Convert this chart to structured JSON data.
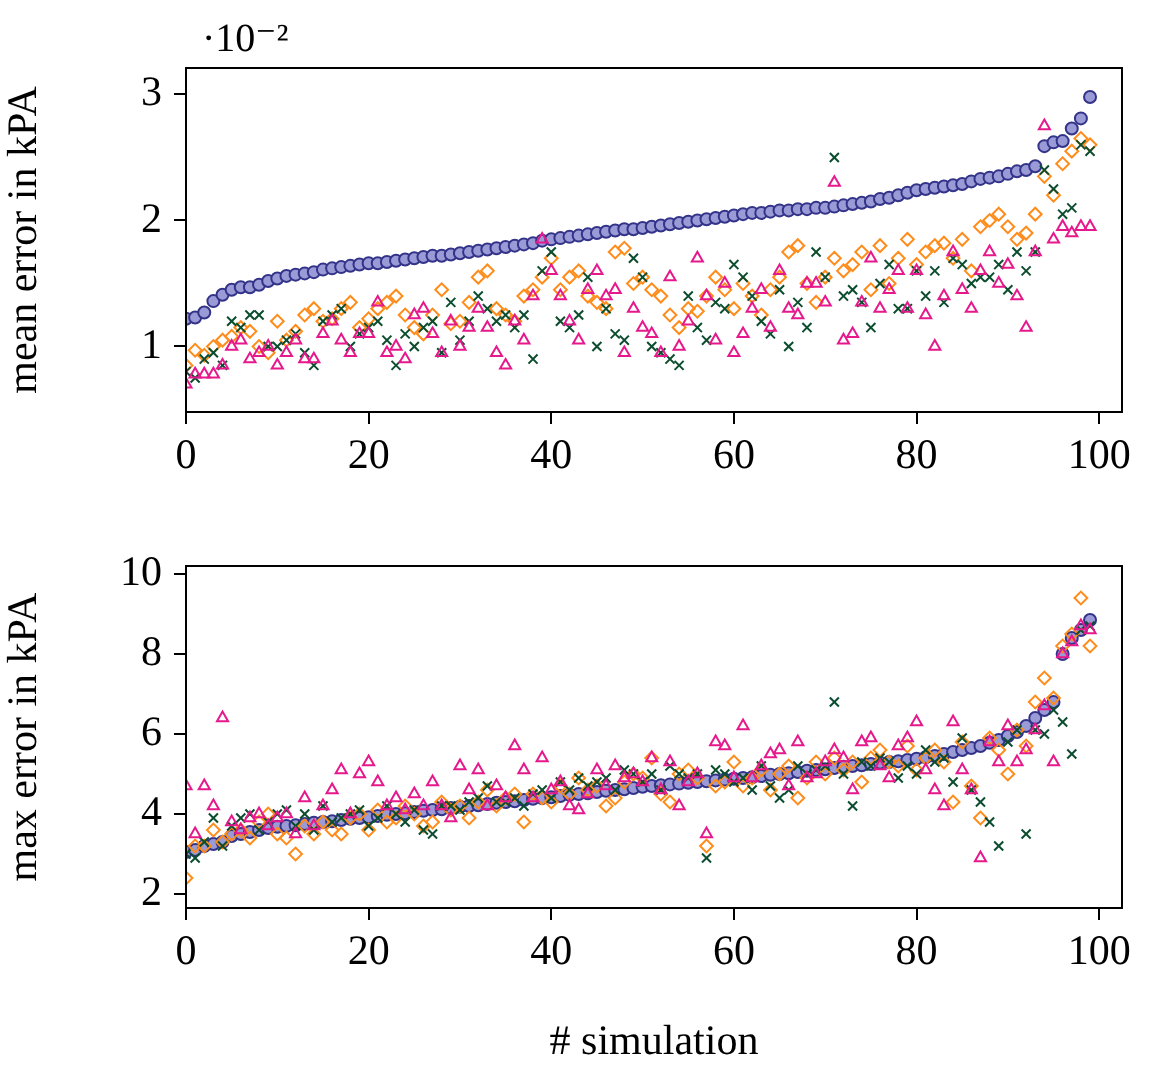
{
  "chart_data": [
    {
      "type": "scatter",
      "ylabel": "mean error in kPA",
      "annotations": [
        "·10⁻²"
      ],
      "xlim": [
        0,
        102.5
      ],
      "xticks": [
        0,
        20,
        40,
        60,
        80,
        100
      ],
      "ylim": [
        0.48,
        3.21
      ],
      "yticks": [
        1,
        2,
        3
      ],
      "grid": false,
      "legend": false,
      "x": [
        0,
        1,
        2,
        3,
        4,
        5,
        6,
        7,
        8,
        9,
        10,
        11,
        12,
        13,
        14,
        15,
        16,
        17,
        18,
        19,
        20,
        21,
        22,
        23,
        24,
        25,
        26,
        27,
        28,
        29,
        30,
        31,
        32,
        33,
        34,
        35,
        36,
        37,
        38,
        39,
        40,
        41,
        42,
        43,
        44,
        45,
        46,
        47,
        48,
        49,
        50,
        51,
        52,
        53,
        54,
        55,
        56,
        57,
        58,
        59,
        60,
        61,
        62,
        63,
        64,
        65,
        66,
        67,
        68,
        69,
        70,
        71,
        72,
        73,
        74,
        75,
        76,
        77,
        78,
        79,
        80,
        81,
        82,
        83,
        84,
        85,
        86,
        87,
        88,
        89,
        90,
        91,
        92,
        93,
        94,
        95,
        96,
        97,
        98,
        99
      ],
      "series": [
        {
          "color": "#e6198c",
          "marker": "triangle",
          "values": [
            0.7,
            0.78,
            0.78,
            0.78,
            0.85,
            1.0,
            1.05,
            0.9,
            0.95,
            1.0,
            0.85,
            0.95,
            1.05,
            0.9,
            0.9,
            1.1,
            1.2,
            1.05,
            0.95,
            1.1,
            1.1,
            1.35,
            0.95,
            1.0,
            0.9,
            1.25,
            1.3,
            1.1,
            0.95,
            1.2,
            1.0,
            1.15,
            1.3,
            1.15,
            0.95,
            0.85,
            1.2,
            1.05,
            1.4,
            1.85,
            1.6,
            1.4,
            1.2,
            1.05,
            1.45,
            1.6,
            1.4,
            1.45,
            0.95,
            1.3,
            1.15,
            1.1,
            0.95,
            1.55,
            1.0,
            1.2,
            1.7,
            1.4,
            1.05,
            1.5,
            0.95,
            1.1,
            1.3,
            1.45,
            1.15,
            1.6,
            1.3,
            1.25,
            1.5,
            1.5,
            1.35,
            2.3,
            1.05,
            1.1,
            1.35,
            1.7,
            1.3,
            1.45,
            1.6,
            1.3,
            1.6,
            1.25,
            1.0,
            1.4,
            1.75,
            1.45,
            1.3,
            1.6,
            1.75,
            1.5,
            1.65,
            1.4,
            1.15,
            1.75,
            2.75,
            1.85,
            1.95,
            1.9,
            1.95,
            1.95
          ]
        },
        {
          "color": "#0b4d2e",
          "marker": "cross",
          "values": [
            0.8,
            0.75,
            0.9,
            0.95,
            0.85,
            1.2,
            1.15,
            1.25,
            1.25,
            1.0,
            1.0,
            1.05,
            1.1,
            0.95,
            0.85,
            1.2,
            1.25,
            1.3,
            1.0,
            1.1,
            1.15,
            1.2,
            1.05,
            0.85,
            1.1,
            1.0,
            1.15,
            1.2,
            0.95,
            1.35,
            1.05,
            1.2,
            1.4,
            1.3,
            1.2,
            1.25,
            1.15,
            1.25,
            0.9,
            1.6,
            1.75,
            1.2,
            1.15,
            1.25,
            1.55,
            1.0,
            1.3,
            1.1,
            1.05,
            1.7,
            1.55,
            1.0,
            0.95,
            0.9,
            0.85,
            1.4,
            1.15,
            1.05,
            1.35,
            1.3,
            1.65,
            1.55,
            1.4,
            1.2,
            1.1,
            1.45,
            1.0,
            1.35,
            1.15,
            1.75,
            1.55,
            2.5,
            1.4,
            1.45,
            1.35,
            1.15,
            1.5,
            1.65,
            1.3,
            1.3,
            1.6,
            1.4,
            1.6,
            1.35,
            1.7,
            1.65,
            1.5,
            1.55,
            1.55,
            1.65,
            1.45,
            1.75,
            1.6,
            1.75,
            2.4,
            2.25,
            2.05,
            2.1,
            2.6,
            2.55
          ]
        },
        {
          "color": "#ff8c1a",
          "marker": "diamond",
          "values": [
            0.85,
            0.97,
            0.93,
            1.0,
            1.05,
            1.08,
            1.15,
            1.12,
            1.0,
            0.95,
            1.2,
            1.05,
            1.12,
            1.25,
            1.3,
            1.2,
            1.22,
            1.3,
            1.35,
            1.15,
            1.22,
            1.3,
            1.35,
            1.4,
            1.25,
            1.15,
            1.1,
            1.25,
            1.45,
            1.18,
            1.2,
            1.35,
            1.55,
            1.6,
            1.3,
            1.25,
            1.2,
            1.4,
            1.45,
            1.55,
            1.7,
            1.45,
            1.55,
            1.6,
            1.4,
            1.35,
            1.3,
            1.75,
            1.78,
            1.5,
            1.55,
            1.45,
            1.4,
            1.25,
            1.15,
            1.3,
            1.28,
            1.4,
            1.55,
            1.45,
            1.3,
            1.5,
            1.4,
            1.25,
            1.45,
            1.55,
            1.75,
            1.8,
            1.5,
            1.35,
            1.55,
            1.7,
            1.6,
            1.65,
            1.75,
            1.45,
            1.8,
            1.5,
            1.7,
            1.85,
            1.65,
            1.75,
            1.8,
            1.82,
            1.7,
            1.85,
            1.6,
            1.95,
            2.0,
            2.05,
            1.95,
            1.85,
            1.9,
            2.05,
            2.35,
            2.2,
            2.45,
            2.55,
            2.65,
            2.6
          ]
        },
        {
          "color": "#33338a",
          "marker": "circle",
          "values": [
            1.22,
            1.23,
            1.27,
            1.36,
            1.41,
            1.45,
            1.47,
            1.47,
            1.49,
            1.52,
            1.54,
            1.56,
            1.57,
            1.58,
            1.59,
            1.61,
            1.62,
            1.63,
            1.64,
            1.65,
            1.66,
            1.66,
            1.67,
            1.68,
            1.69,
            1.7,
            1.71,
            1.72,
            1.72,
            1.73,
            1.74,
            1.75,
            1.76,
            1.77,
            1.78,
            1.79,
            1.8,
            1.81,
            1.82,
            1.84,
            1.85,
            1.86,
            1.87,
            1.88,
            1.89,
            1.9,
            1.91,
            1.92,
            1.93,
            1.93,
            1.94,
            1.95,
            1.96,
            1.97,
            1.98,
            1.99,
            2.0,
            2.01,
            2.02,
            2.03,
            2.04,
            2.05,
            2.06,
            2.06,
            2.07,
            2.08,
            2.08,
            2.09,
            2.09,
            2.1,
            2.1,
            2.11,
            2.12,
            2.13,
            2.14,
            2.15,
            2.17,
            2.18,
            2.2,
            2.22,
            2.24,
            2.25,
            2.26,
            2.27,
            2.28,
            2.29,
            2.31,
            2.33,
            2.34,
            2.35,
            2.37,
            2.39,
            2.4,
            2.43,
            2.59,
            2.62,
            2.63,
            2.73,
            2.81,
            2.98
          ]
        }
      ]
    },
    {
      "type": "scatter",
      "xlabel": "# simulation",
      "ylabel": "max error in kPA",
      "xlim": [
        0,
        102.5
      ],
      "xticks": [
        0,
        20,
        40,
        60,
        80,
        100
      ],
      "ylim": [
        1.65,
        10.2
      ],
      "yticks": [
        2,
        4,
        6,
        8,
        10
      ],
      "grid": false,
      "legend": false,
      "x": [
        0,
        1,
        2,
        3,
        4,
        5,
        6,
        7,
        8,
        9,
        10,
        11,
        12,
        13,
        14,
        15,
        16,
        17,
        18,
        19,
        20,
        21,
        22,
        23,
        24,
        25,
        26,
        27,
        28,
        29,
        30,
        31,
        32,
        33,
        34,
        35,
        36,
        37,
        38,
        39,
        40,
        41,
        42,
        43,
        44,
        45,
        46,
        47,
        48,
        49,
        50,
        51,
        52,
        53,
        54,
        55,
        56,
        57,
        58,
        59,
        60,
        61,
        62,
        63,
        64,
        65,
        66,
        67,
        68,
        69,
        70,
        71,
        72,
        73,
        74,
        75,
        76,
        77,
        78,
        79,
        80,
        81,
        82,
        83,
        84,
        85,
        86,
        87,
        88,
        89,
        90,
        91,
        92,
        93,
        94,
        95,
        96,
        97,
        98,
        99
      ],
      "series": [
        {
          "color": "#e6198c",
          "marker": "triangle",
          "values": [
            4.7,
            3.5,
            4.7,
            4.2,
            6.4,
            3.8,
            3.6,
            3.9,
            4.0,
            3.7,
            3.9,
            4.0,
            3.5,
            4.4,
            3.7,
            4.2,
            4.6,
            5.1,
            4.0,
            5.0,
            5.3,
            4.8,
            4.2,
            4.4,
            4.1,
            4.5,
            4.2,
            4.8,
            4.2,
            3.9,
            5.2,
            4.6,
            5.1,
            4.2,
            4.7,
            4.4,
            5.7,
            5.1,
            4.4,
            5.4,
            4.6,
            4.8,
            4.2,
            4.1,
            4.5,
            5.1,
            4.7,
            5.2,
            4.9,
            5.0,
            4.8,
            5.4,
            4.6,
            5.3,
            4.2,
            4.8,
            5.0,
            3.5,
            5.8,
            5.7,
            4.9,
            6.2,
            4.9,
            5.2,
            5.5,
            5.6,
            4.7,
            5.8,
            4.9,
            5.0,
            5.3,
            5.6,
            5.4,
            4.6,
            5.8,
            5.9,
            5.2,
            4.9,
            5.7,
            5.9,
            6.3,
            5.1,
            4.6,
            4.2,
            6.3,
            5.1,
            4.6,
            2.9,
            5.8,
            5.3,
            6.2,
            5.3,
            5.6,
            6.1,
            6.7,
            5.3,
            8.0,
            8.3,
            8.7,
            8.6
          ]
        },
        {
          "color": "#0b4d2e",
          "marker": "cross",
          "values": [
            3.0,
            2.9,
            3.3,
            3.9,
            3.2,
            3.7,
            3.9,
            4.0,
            3.6,
            3.8,
            4.0,
            4.1,
            3.7,
            4.0,
            3.6,
            4.2,
            3.8,
            3.9,
            4.0,
            4.1,
            3.7,
            3.9,
            4.2,
            4.0,
            3.8,
            4.1,
            3.6,
            3.5,
            4.2,
            4.2,
            4.1,
            4.3,
            4.4,
            4.7,
            4.3,
            4.3,
            4.4,
            4.2,
            4.5,
            4.6,
            4.4,
            4.8,
            4.6,
            4.9,
            4.7,
            4.8,
            4.9,
            4.6,
            5.1,
            5.0,
            4.8,
            5.0,
            4.6,
            5.2,
            5.0,
            4.9,
            5.0,
            2.9,
            5.1,
            5.0,
            4.8,
            4.9,
            4.6,
            5.2,
            4.7,
            4.4,
            4.6,
            5.2,
            5.0,
            5.1,
            5.2,
            6.8,
            5.0,
            4.2,
            5.3,
            5.2,
            5.4,
            5.3,
            4.9,
            5.2,
            5.0,
            5.6,
            5.3,
            5.4,
            4.8,
            5.9,
            4.6,
            4.3,
            3.8,
            3.2,
            5.8,
            6.1,
            3.5,
            6.1,
            6.0,
            6.6,
            6.3,
            5.5,
            8.6,
            8.7
          ]
        },
        {
          "color": "#ff8c1a",
          "marker": "diamond",
          "values": [
            2.4,
            3.2,
            3.2,
            3.6,
            3.3,
            3.5,
            3.6,
            3.4,
            3.8,
            4.0,
            3.5,
            3.4,
            3.0,
            3.7,
            3.5,
            3.8,
            3.6,
            3.5,
            3.9,
            4.0,
            3.6,
            4.1,
            3.8,
            3.9,
            4.2,
            4.0,
            3.7,
            3.8,
            4.3,
            4.1,
            4.2,
            3.9,
            4.3,
            4.6,
            4.2,
            4.4,
            4.5,
            3.8,
            4.5,
            4.4,
            4.3,
            4.7,
            4.5,
            4.9,
            4.6,
            4.7,
            4.2,
            4.4,
            4.8,
            5.0,
            4.9,
            5.4,
            4.5,
            4.3,
            5.0,
            5.1,
            4.9,
            3.2,
            4.7,
            4.8,
            5.3,
            4.7,
            4.9,
            5.1,
            4.6,
            5.0,
            5.2,
            4.4,
            4.9,
            5.3,
            5.0,
            5.4,
            5.1,
            5.3,
            4.8,
            5.4,
            5.6,
            5.3,
            5.2,
            5.7,
            5.1,
            5.4,
            5.6,
            5.3,
            4.3,
            5.8,
            4.7,
            3.9,
            5.9,
            5.6,
            5.0,
            6.1,
            5.7,
            6.8,
            7.4,
            6.9,
            8.2,
            8.5,
            9.4,
            8.2
          ]
        },
        {
          "color": "#33338a",
          "marker": "circle",
          "values": [
            3.05,
            3.1,
            3.2,
            3.25,
            3.3,
            3.45,
            3.5,
            3.55,
            3.6,
            3.65,
            3.68,
            3.7,
            3.72,
            3.75,
            3.78,
            3.8,
            3.82,
            3.85,
            3.88,
            3.9,
            3.92,
            3.95,
            3.98,
            4.0,
            4.02,
            4.05,
            4.08,
            4.1,
            4.12,
            4.15,
            4.18,
            4.2,
            4.22,
            4.25,
            4.28,
            4.3,
            4.32,
            4.35,
            4.38,
            4.4,
            4.42,
            4.45,
            4.48,
            4.5,
            4.52,
            4.55,
            4.58,
            4.6,
            4.62,
            4.65,
            4.68,
            4.7,
            4.72,
            4.74,
            4.76,
            4.78,
            4.8,
            4.82,
            4.84,
            4.86,
            4.88,
            4.9,
            4.92,
            4.95,
            4.98,
            5.0,
            5.02,
            5.05,
            5.08,
            5.1,
            5.12,
            5.15,
            5.18,
            5.2,
            5.22,
            5.25,
            5.28,
            5.3,
            5.32,
            5.35,
            5.38,
            5.42,
            5.45,
            5.5,
            5.55,
            5.6,
            5.65,
            5.7,
            5.78,
            5.85,
            5.95,
            6.05,
            6.2,
            6.4,
            6.6,
            6.8,
            8.0,
            8.4,
            8.6,
            8.85
          ]
        }
      ]
    }
  ]
}
